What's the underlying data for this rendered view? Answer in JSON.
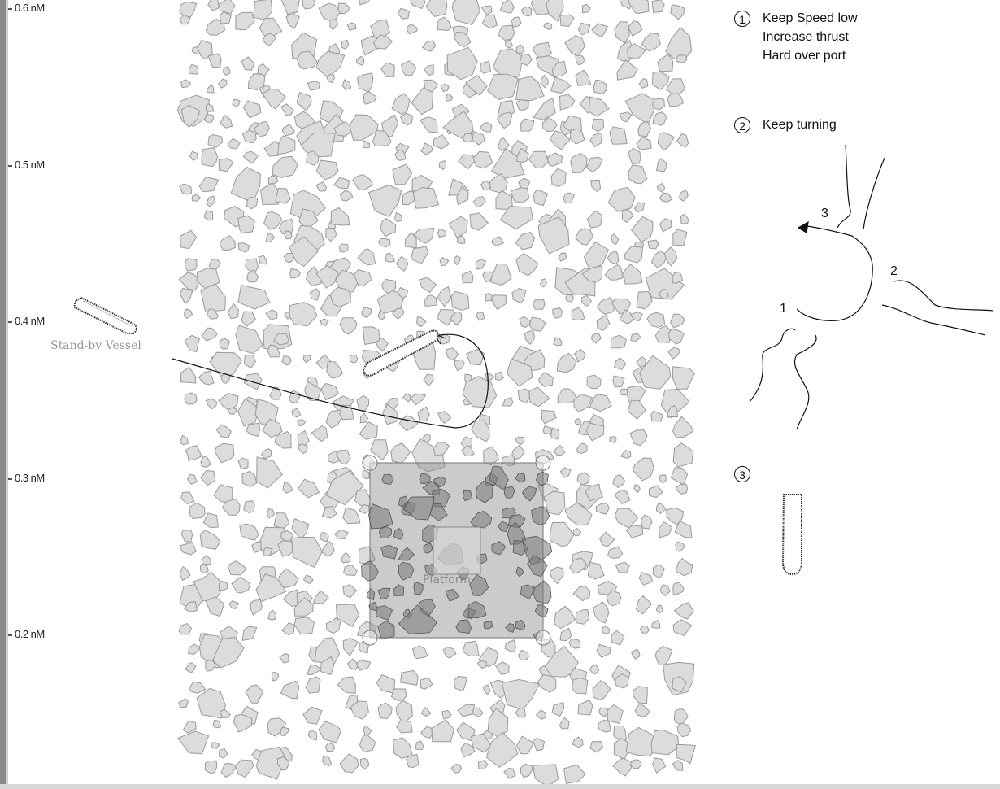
{
  "scale": {
    "labels": [
      "0.6 nM",
      "0.5 nM",
      "0.4 nM",
      "0.3 nM",
      "0.2 nM"
    ]
  },
  "scene": {
    "standby_label": "Stand-by Vessel",
    "platform_label": "Platform"
  },
  "instructions": {
    "step1": {
      "num": "1",
      "lines": [
        "Keep Speed low",
        "Increase thrust",
        "Hard over port"
      ]
    },
    "step2": {
      "num": "2",
      "text": "Keep turning"
    },
    "step3": {
      "num": "3"
    }
  },
  "figure": {
    "labels": [
      "1",
      "2",
      "3"
    ]
  },
  "colors": {
    "ice_fill": "#dcdcdc",
    "ice_stroke": "#9a9a9a",
    "platform_fill": "#8c8c8c",
    "ice_dark": "#7a7a7a"
  }
}
